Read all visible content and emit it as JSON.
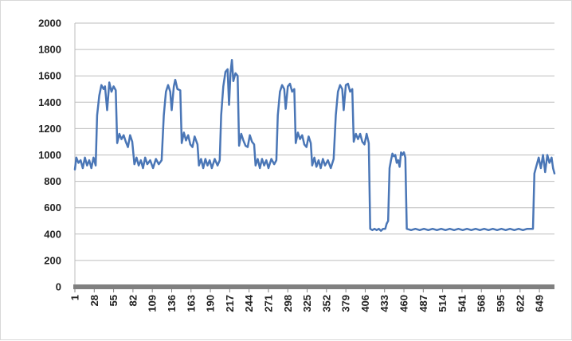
{
  "chart_data": {
    "type": "line",
    "title": "",
    "xlabel": "",
    "ylabel": "",
    "ylim": [
      0,
      2000
    ],
    "y_ticks": [
      0,
      200,
      400,
      600,
      800,
      1000,
      1200,
      1400,
      1600,
      1800,
      2000
    ],
    "x_range": [
      1,
      670
    ],
    "x_tick_labels": [
      "1",
      "28",
      "55",
      "82",
      "109",
      "136",
      "163",
      "190",
      "217",
      "244",
      "271",
      "298",
      "325",
      "352",
      "379",
      "406",
      "433",
      "460",
      "487",
      "514",
      "541",
      "568",
      "595",
      "622",
      "649"
    ],
    "grid": "horizontal",
    "legend": "none",
    "line_color": "#4a76b6",
    "axis_color": "#808080",
    "series": [
      {
        "points": [
          [
            1,
            890
          ],
          [
            3,
            980
          ],
          [
            6,
            940
          ],
          [
            9,
            960
          ],
          [
            12,
            900
          ],
          [
            15,
            980
          ],
          [
            18,
            920
          ],
          [
            21,
            960
          ],
          [
            24,
            900
          ],
          [
            27,
            980
          ],
          [
            30,
            920
          ],
          [
            32,
            1300
          ],
          [
            35,
            1450
          ],
          [
            38,
            1530
          ],
          [
            41,
            1500
          ],
          [
            43,
            1520
          ],
          [
            46,
            1340
          ],
          [
            49,
            1550
          ],
          [
            52,
            1480
          ],
          [
            55,
            1520
          ],
          [
            58,
            1490
          ],
          [
            60,
            1090
          ],
          [
            63,
            1160
          ],
          [
            66,
            1120
          ],
          [
            69,
            1150
          ],
          [
            72,
            1100
          ],
          [
            75,
            1060
          ],
          [
            78,
            1150
          ],
          [
            81,
            1100
          ],
          [
            84,
            930
          ],
          [
            87,
            980
          ],
          [
            90,
            920
          ],
          [
            93,
            960
          ],
          [
            96,
            900
          ],
          [
            99,
            980
          ],
          [
            102,
            930
          ],
          [
            106,
            960
          ],
          [
            110,
            900
          ],
          [
            114,
            970
          ],
          [
            118,
            930
          ],
          [
            122,
            960
          ],
          [
            125,
            1300
          ],
          [
            128,
            1480
          ],
          [
            131,
            1530
          ],
          [
            134,
            1480
          ],
          [
            136,
            1340
          ],
          [
            139,
            1520
          ],
          [
            141,
            1570
          ],
          [
            144,
            1500
          ],
          [
            148,
            1490
          ],
          [
            150,
            1090
          ],
          [
            153,
            1170
          ],
          [
            156,
            1110
          ],
          [
            159,
            1150
          ],
          [
            162,
            1080
          ],
          [
            165,
            1060
          ],
          [
            168,
            1140
          ],
          [
            172,
            1080
          ],
          [
            174,
            920
          ],
          [
            177,
            970
          ],
          [
            180,
            900
          ],
          [
            183,
            970
          ],
          [
            186,
            920
          ],
          [
            189,
            960
          ],
          [
            192,
            900
          ],
          [
            196,
            970
          ],
          [
            200,
            920
          ],
          [
            203,
            960
          ],
          [
            205,
            1300
          ],
          [
            208,
            1520
          ],
          [
            211,
            1630
          ],
          [
            214,
            1650
          ],
          [
            216,
            1380
          ],
          [
            218,
            1620
          ],
          [
            220,
            1720
          ],
          [
            222,
            1560
          ],
          [
            225,
            1620
          ],
          [
            228,
            1600
          ],
          [
            230,
            1070
          ],
          [
            233,
            1160
          ],
          [
            236,
            1110
          ],
          [
            239,
            1070
          ],
          [
            242,
            1060
          ],
          [
            245,
            1150
          ],
          [
            248,
            1100
          ],
          [
            251,
            1080
          ],
          [
            253,
            920
          ],
          [
            256,
            970
          ],
          [
            259,
            900
          ],
          [
            262,
            970
          ],
          [
            265,
            920
          ],
          [
            268,
            960
          ],
          [
            271,
            900
          ],
          [
            275,
            970
          ],
          [
            279,
            930
          ],
          [
            282,
            960
          ],
          [
            284,
            1300
          ],
          [
            287,
            1480
          ],
          [
            290,
            1530
          ],
          [
            293,
            1500
          ],
          [
            295,
            1350
          ],
          [
            298,
            1520
          ],
          [
            301,
            1540
          ],
          [
            304,
            1480
          ],
          [
            307,
            1500
          ],
          [
            309,
            1090
          ],
          [
            312,
            1170
          ],
          [
            315,
            1120
          ],
          [
            318,
            1150
          ],
          [
            321,
            1080
          ],
          [
            324,
            1060
          ],
          [
            327,
            1140
          ],
          [
            330,
            1090
          ],
          [
            332,
            920
          ],
          [
            335,
            980
          ],
          [
            338,
            910
          ],
          [
            341,
            960
          ],
          [
            344,
            900
          ],
          [
            347,
            970
          ],
          [
            350,
            920
          ],
          [
            354,
            960
          ],
          [
            358,
            900
          ],
          [
            362,
            970
          ],
          [
            365,
            1300
          ],
          [
            368,
            1480
          ],
          [
            371,
            1530
          ],
          [
            374,
            1500
          ],
          [
            376,
            1340
          ],
          [
            379,
            1530
          ],
          [
            382,
            1540
          ],
          [
            385,
            1480
          ],
          [
            388,
            1500
          ],
          [
            390,
            1100
          ],
          [
            393,
            1160
          ],
          [
            396,
            1120
          ],
          [
            399,
            1160
          ],
          [
            402,
            1100
          ],
          [
            405,
            1080
          ],
          [
            408,
            1160
          ],
          [
            411,
            1090
          ],
          [
            413,
            440
          ],
          [
            416,
            430
          ],
          [
            419,
            440
          ],
          [
            422,
            430
          ],
          [
            425,
            440
          ],
          [
            428,
            425
          ],
          [
            431,
            440
          ],
          [
            434,
            440
          ],
          [
            436,
            480
          ],
          [
            438,
            500
          ],
          [
            440,
            900
          ],
          [
            442,
            960
          ],
          [
            444,
            1010
          ],
          [
            446,
            990
          ],
          [
            448,
            1000
          ],
          [
            450,
            940
          ],
          [
            452,
            960
          ],
          [
            454,
            910
          ],
          [
            456,
            1020
          ],
          [
            458,
            1000
          ],
          [
            460,
            1020
          ],
          [
            462,
            980
          ],
          [
            464,
            440
          ],
          [
            470,
            430
          ],
          [
            476,
            440
          ],
          [
            482,
            430
          ],
          [
            488,
            440
          ],
          [
            494,
            430
          ],
          [
            500,
            440
          ],
          [
            506,
            430
          ],
          [
            512,
            440
          ],
          [
            518,
            430
          ],
          [
            524,
            440
          ],
          [
            530,
            430
          ],
          [
            536,
            440
          ],
          [
            542,
            430
          ],
          [
            548,
            440
          ],
          [
            554,
            430
          ],
          [
            560,
            440
          ],
          [
            566,
            430
          ],
          [
            572,
            440
          ],
          [
            578,
            430
          ],
          [
            584,
            440
          ],
          [
            590,
            430
          ],
          [
            596,
            440
          ],
          [
            602,
            430
          ],
          [
            608,
            440
          ],
          [
            614,
            430
          ],
          [
            620,
            440
          ],
          [
            626,
            430
          ],
          [
            632,
            440
          ],
          [
            638,
            440
          ],
          [
            640,
            440
          ],
          [
            642,
            860
          ],
          [
            645,
            920
          ],
          [
            648,
            980
          ],
          [
            651,
            900
          ],
          [
            654,
            1000
          ],
          [
            657,
            870
          ],
          [
            660,
            1000
          ],
          [
            663,
            940
          ],
          [
            666,
            980
          ],
          [
            668,
            900
          ],
          [
            670,
            860
          ]
        ]
      }
    ]
  }
}
